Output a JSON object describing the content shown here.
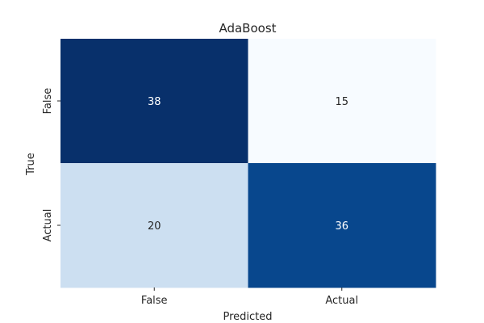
{
  "chart_data": {
    "type": "heatmap",
    "title": "AdaBoost",
    "xlabel": "Predicted",
    "ylabel": "True",
    "x_categories": [
      "False",
      "Actual"
    ],
    "y_categories": [
      "False",
      "Actual"
    ],
    "values": [
      [
        38,
        15
      ],
      [
        20,
        36
      ]
    ],
    "colormap": "Blues",
    "colorbar": false,
    "grid": false,
    "colors": {
      "low": "#f7fbff",
      "high": "#08306b",
      "text_dark": "#262626",
      "text_light": "#ffffff"
    }
  }
}
